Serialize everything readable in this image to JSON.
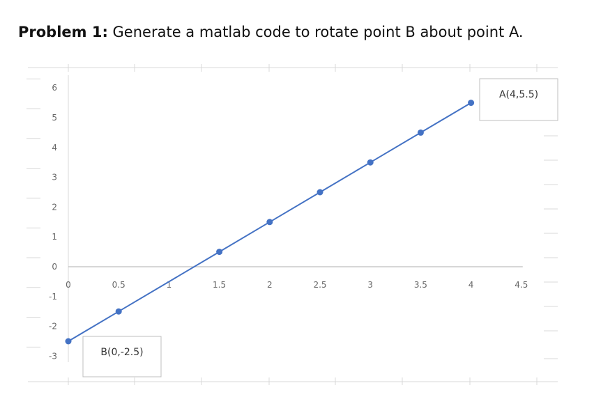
{
  "problem": {
    "bold": "Problem 1:",
    "text": " Generate a matlab code to rotate point B about point A."
  },
  "chart_data": {
    "type": "line",
    "xlim": [
      0,
      4.5
    ],
    "ylim": [
      -3,
      6
    ],
    "xticks": [
      "0",
      "0.5",
      "1",
      "1.5",
      "2",
      "2.5",
      "3",
      "3.5",
      "4",
      "4.5"
    ],
    "yticks": [
      "6",
      "5",
      "4",
      "3",
      "2",
      "1",
      "0",
      "-1",
      "-2",
      "-3"
    ],
    "series": [
      {
        "x": [
          0,
          0.5,
          1.5,
          2,
          2.5,
          3,
          3.5,
          4
        ],
        "y": [
          -2.5,
          -1.5,
          0.5,
          1.5,
          2.5,
          3.5,
          4.5,
          5.5
        ]
      }
    ],
    "annotations": [
      {
        "text": "A(4,5.5)",
        "x": 4,
        "y": 5.5
      },
      {
        "text": "B(0,-2.5)",
        "x": 0,
        "y": -2.5
      }
    ],
    "colors": {
      "line": "#4472c4",
      "marker": "#4472c4",
      "axis": "#bfbfbf",
      "grid": "#d9d9d9"
    },
    "grid": false
  }
}
